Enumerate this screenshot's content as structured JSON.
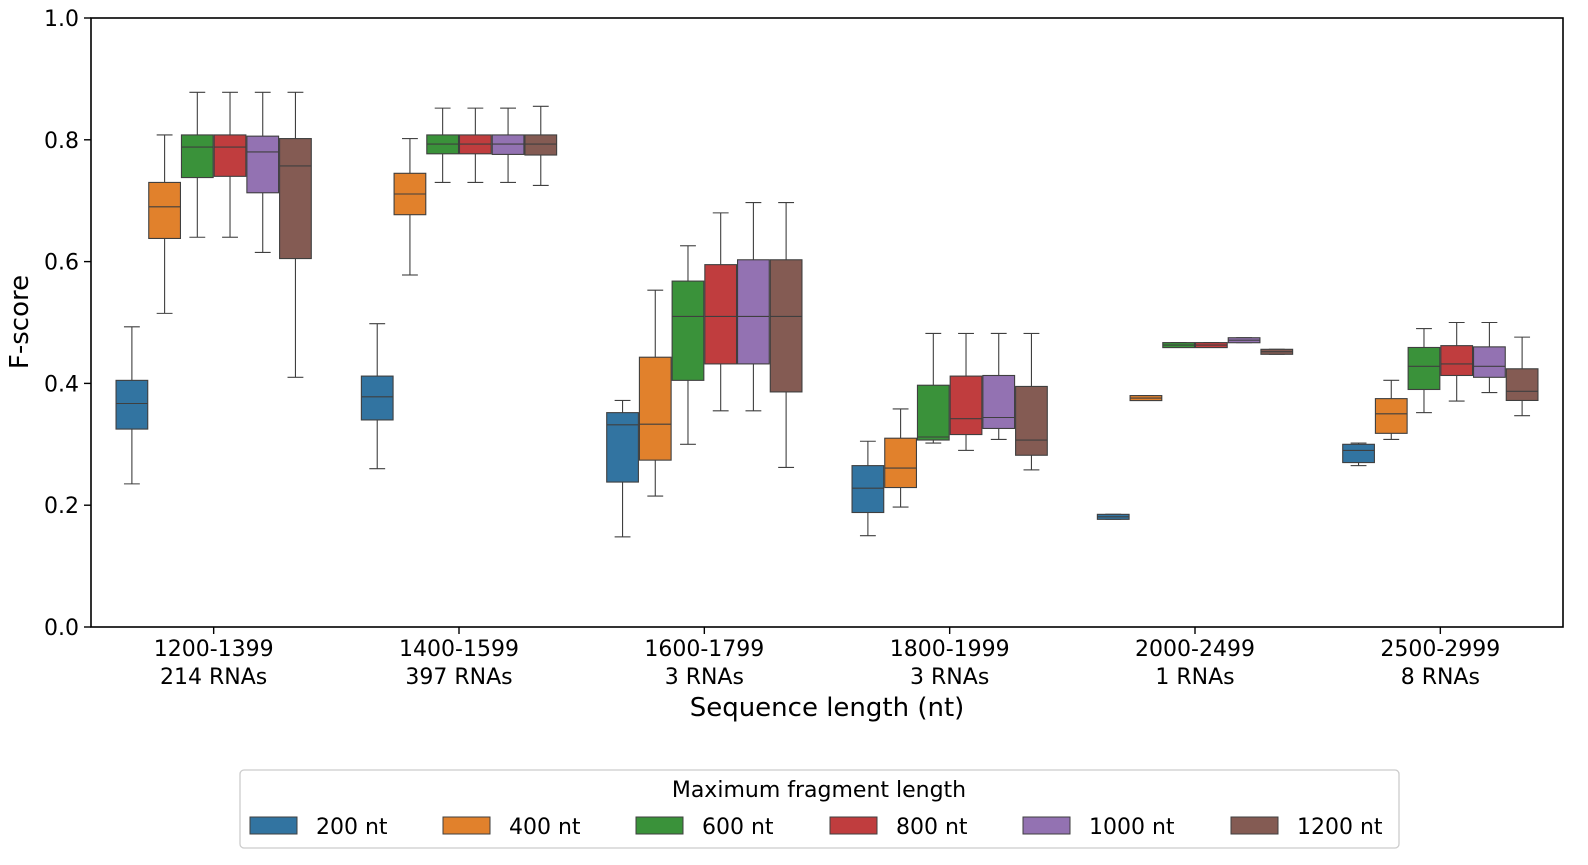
{
  "chart_data": {
    "type": "boxplot",
    "xlabel": "Sequence length (nt)",
    "ylabel": "F-score",
    "ylim": [
      0.0,
      1.0
    ],
    "yticks": [
      "0.0",
      "0.2",
      "0.4",
      "0.6",
      "0.8",
      "1.0"
    ],
    "grid": false,
    "legend_position": "bottom-center",
    "legend_title": "Maximum fragment length",
    "categories": [
      {
        "range": "1200-1399",
        "count": "214 RNAs"
      },
      {
        "range": "1400-1599",
        "count": "397 RNAs"
      },
      {
        "range": "1600-1799",
        "count": "3 RNAs"
      },
      {
        "range": "1800-1999",
        "count": "3 RNAs"
      },
      {
        "range": "2000-2499",
        "count": "1 RNAs"
      },
      {
        "range": "2500-2999",
        "count": "8 RNAs"
      }
    ],
    "series": [
      {
        "name": "200 nt",
        "color": "#3274a1",
        "boxes": [
          {
            "min": 0.235,
            "q1": 0.325,
            "median": 0.367,
            "q3": 0.405,
            "max": 0.493
          },
          {
            "min": 0.26,
            "q1": 0.34,
            "median": 0.378,
            "q3": 0.412,
            "max": 0.498
          },
          {
            "min": 0.148,
            "q1": 0.238,
            "median": 0.332,
            "q3": 0.352,
            "max": 0.372
          },
          {
            "min": 0.15,
            "q1": 0.188,
            "median": 0.228,
            "q3": 0.265,
            "max": 0.305
          },
          {
            "min": 0.177,
            "q1": 0.177,
            "median": 0.181,
            "q3": 0.185,
            "max": 0.185
          },
          {
            "min": 0.265,
            "q1": 0.27,
            "median": 0.29,
            "q3": 0.3,
            "max": 0.302
          }
        ]
      },
      {
        "name": "400 nt",
        "color": "#e1812c",
        "boxes": [
          {
            "min": 0.515,
            "q1": 0.638,
            "median": 0.69,
            "q3": 0.73,
            "max": 0.808
          },
          {
            "min": 0.578,
            "q1": 0.677,
            "median": 0.711,
            "q3": 0.745,
            "max": 0.802
          },
          {
            "min": 0.215,
            "q1": 0.274,
            "median": 0.333,
            "q3": 0.443,
            "max": 0.553
          },
          {
            "min": 0.197,
            "q1": 0.229,
            "median": 0.261,
            "q3": 0.31,
            "max": 0.358
          },
          {
            "min": 0.372,
            "q1": 0.372,
            "median": 0.376,
            "q3": 0.38,
            "max": 0.38
          },
          {
            "min": 0.308,
            "q1": 0.318,
            "median": 0.35,
            "q3": 0.375,
            "max": 0.405
          }
        ]
      },
      {
        "name": "600 nt",
        "color": "#3a923a",
        "boxes": [
          {
            "min": 0.64,
            "q1": 0.738,
            "median": 0.788,
            "q3": 0.808,
            "max": 0.878
          },
          {
            "min": 0.73,
            "q1": 0.777,
            "median": 0.793,
            "q3": 0.808,
            "max": 0.852
          },
          {
            "min": 0.3,
            "q1": 0.405,
            "median": 0.51,
            "q3": 0.568,
            "max": 0.626
          },
          {
            "min": 0.302,
            "q1": 0.307,
            "median": 0.312,
            "q3": 0.397,
            "max": 0.482
          },
          {
            "min": 0.459,
            "q1": 0.459,
            "median": 0.463,
            "q3": 0.467,
            "max": 0.467
          },
          {
            "min": 0.352,
            "q1": 0.39,
            "median": 0.428,
            "q3": 0.459,
            "max": 0.49
          }
        ]
      },
      {
        "name": "800 nt",
        "color": "#c03d3e",
        "boxes": [
          {
            "min": 0.64,
            "q1": 0.74,
            "median": 0.788,
            "q3": 0.808,
            "max": 0.878
          },
          {
            "min": 0.73,
            "q1": 0.777,
            "median": 0.793,
            "q3": 0.808,
            "max": 0.852
          },
          {
            "min": 0.355,
            "q1": 0.432,
            "median": 0.51,
            "q3": 0.595,
            "max": 0.68
          },
          {
            "min": 0.29,
            "q1": 0.316,
            "median": 0.342,
            "q3": 0.412,
            "max": 0.482
          },
          {
            "min": 0.459,
            "q1": 0.459,
            "median": 0.463,
            "q3": 0.467,
            "max": 0.467
          },
          {
            "min": 0.371,
            "q1": 0.413,
            "median": 0.432,
            "q3": 0.462,
            "max": 0.5
          }
        ]
      },
      {
        "name": "1000 nt",
        "color": "#9372b2",
        "boxes": [
          {
            "min": 0.615,
            "q1": 0.713,
            "median": 0.78,
            "q3": 0.806,
            "max": 0.878
          },
          {
            "min": 0.73,
            "q1": 0.776,
            "median": 0.793,
            "q3": 0.808,
            "max": 0.852
          },
          {
            "min": 0.355,
            "q1": 0.432,
            "median": 0.51,
            "q3": 0.603,
            "max": 0.697
          },
          {
            "min": 0.308,
            "q1": 0.326,
            "median": 0.344,
            "q3": 0.413,
            "max": 0.482
          },
          {
            "min": 0.467,
            "q1": 0.467,
            "median": 0.471,
            "q3": 0.475,
            "max": 0.475
          },
          {
            "min": 0.385,
            "q1": 0.41,
            "median": 0.428,
            "q3": 0.46,
            "max": 0.5
          }
        ]
      },
      {
        "name": "1200 nt",
        "color": "#845b53",
        "boxes": [
          {
            "min": 0.41,
            "q1": 0.605,
            "median": 0.757,
            "q3": 0.802,
            "max": 0.878
          },
          {
            "min": 0.725,
            "q1": 0.775,
            "median": 0.793,
            "q3": 0.808,
            "max": 0.855
          },
          {
            "min": 0.262,
            "q1": 0.386,
            "median": 0.51,
            "q3": 0.603,
            "max": 0.697
          },
          {
            "min": 0.258,
            "q1": 0.282,
            "median": 0.307,
            "q3": 0.395,
            "max": 0.482
          },
          {
            "min": 0.448,
            "q1": 0.448,
            "median": 0.452,
            "q3": 0.456,
            "max": 0.456
          },
          {
            "min": 0.347,
            "q1": 0.372,
            "median": 0.387,
            "q3": 0.424,
            "max": 0.476
          }
        ]
      }
    ]
  }
}
